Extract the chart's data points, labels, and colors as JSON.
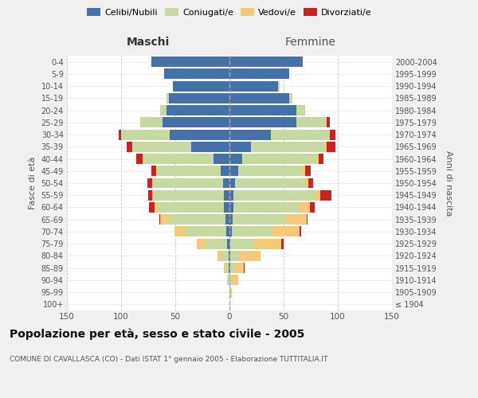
{
  "age_groups": [
    "100+",
    "95-99",
    "90-94",
    "85-89",
    "80-84",
    "75-79",
    "70-74",
    "65-69",
    "60-64",
    "55-59",
    "50-54",
    "45-49",
    "40-44",
    "35-39",
    "30-34",
    "25-29",
    "20-24",
    "15-19",
    "10-14",
    "5-9",
    "0-4"
  ],
  "birth_years": [
    "≤ 1904",
    "1905-1909",
    "1910-1914",
    "1915-1919",
    "1920-1924",
    "1925-1929",
    "1930-1934",
    "1935-1939",
    "1940-1944",
    "1945-1949",
    "1950-1954",
    "1955-1959",
    "1960-1964",
    "1965-1969",
    "1970-1974",
    "1975-1979",
    "1980-1984",
    "1985-1989",
    "1990-1994",
    "1995-1999",
    "2000-2004"
  ],
  "maschi": {
    "celibi": [
      0,
      0,
      0,
      1,
      1,
      2,
      3,
      4,
      5,
      5,
      6,
      8,
      15,
      35,
      55,
      62,
      58,
      56,
      52,
      60,
      72
    ],
    "coniugati": [
      0,
      0,
      2,
      3,
      6,
      20,
      38,
      52,
      62,
      65,
      65,
      60,
      65,
      55,
      45,
      20,
      6,
      2,
      0,
      0,
      0
    ],
    "vedovi": [
      0,
      0,
      0,
      1,
      4,
      8,
      10,
      8,
      2,
      1,
      0,
      0,
      0,
      0,
      0,
      0,
      0,
      0,
      0,
      0,
      0
    ],
    "divorziati": [
      0,
      0,
      0,
      0,
      0,
      0,
      0,
      1,
      5,
      4,
      5,
      4,
      6,
      5,
      2,
      0,
      0,
      0,
      0,
      0,
      0
    ]
  },
  "femmine": {
    "nubili": [
      0,
      0,
      0,
      1,
      1,
      1,
      2,
      3,
      4,
      4,
      5,
      8,
      12,
      20,
      38,
      62,
      62,
      55,
      45,
      55,
      68
    ],
    "coniugate": [
      0,
      1,
      3,
      4,
      8,
      22,
      38,
      50,
      60,
      75,
      65,
      60,
      68,
      68,
      55,
      28,
      8,
      3,
      1,
      0,
      0
    ],
    "vedove": [
      0,
      1,
      5,
      8,
      20,
      25,
      25,
      18,
      10,
      5,
      3,
      2,
      2,
      2,
      0,
      0,
      0,
      0,
      0,
      0,
      0
    ],
    "divorziate": [
      0,
      0,
      0,
      1,
      0,
      2,
      1,
      1,
      5,
      10,
      4,
      5,
      5,
      8,
      5,
      3,
      0,
      0,
      0,
      0,
      0
    ]
  },
  "color_celibi": "#4472a8",
  "color_coniugati": "#c5d9a0",
  "color_vedovi": "#f5c97a",
  "color_divorziati": "#cc2222",
  "xlim": 150,
  "title": "Popolazione per età, sesso e stato civile - 2005",
  "subtitle": "COMUNE DI CAVALLASCA (CO) - Dati ISTAT 1° gennaio 2005 - Elaborazione TUTTITALIA.IT",
  "ylabel_left": "Fasce di età",
  "ylabel_right": "Anni di nascita",
  "xlabel_left": "Maschi",
  "xlabel_right": "Femmine",
  "bg_color": "#f0f0f0",
  "plot_bg_color": "#ffffff"
}
